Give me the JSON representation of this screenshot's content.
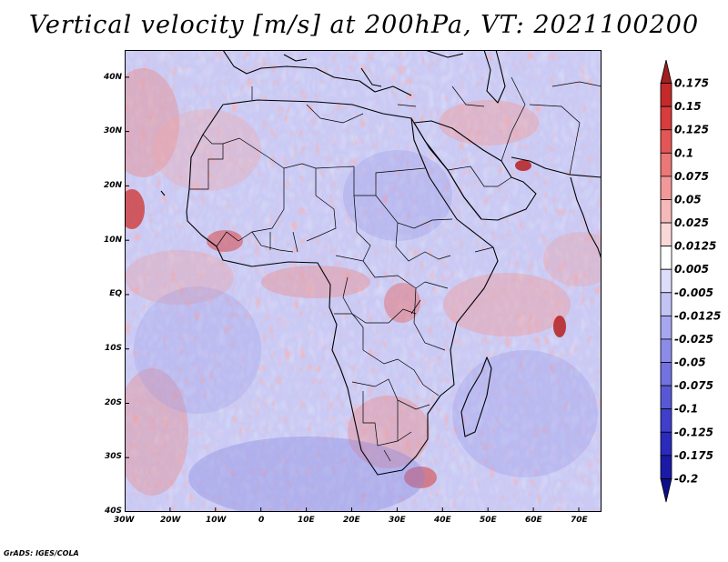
{
  "title": "Vertical velocity [m/s] at 200hPa, VT: 2021100200",
  "footer": "GrADS: IGES/COLA",
  "map": {
    "lat_labels": [
      "40N",
      "30N",
      "20N",
      "10N",
      "EQ",
      "10S",
      "20S",
      "30S",
      "40S"
    ],
    "lon_labels": [
      "30W",
      "20W",
      "10W",
      "0",
      "10E",
      "20E",
      "30E",
      "40E",
      "50E",
      "60E",
      "70E"
    ],
    "lon_range": [
      -30,
      75
    ],
    "lat_range": [
      -40,
      45
    ]
  },
  "colorbar": {
    "levels": [
      "0.175",
      "0.15",
      "0.125",
      "0.1",
      "0.075",
      "0.05",
      "0.025",
      "0.0125",
      "0.005",
      "-0.005",
      "-0.0125",
      "-0.025",
      "-0.05",
      "-0.075",
      "-0.1",
      "-0.125",
      "-0.175",
      "-0.2"
    ],
    "colors": [
      "#a01f1f",
      "#c42a2a",
      "#d83c3c",
      "#e45656",
      "#eb7777",
      "#f19999",
      "#f6b9b9",
      "#fad8d8",
      "#ffffff",
      "#ddddfa",
      "#c3c3f5",
      "#a7a7ef",
      "#8c8ce8",
      "#7272e0",
      "#5858d6",
      "#3f3fcb",
      "#2a2abd",
      "#1a1aa6",
      "#0e0e8a"
    ]
  }
}
